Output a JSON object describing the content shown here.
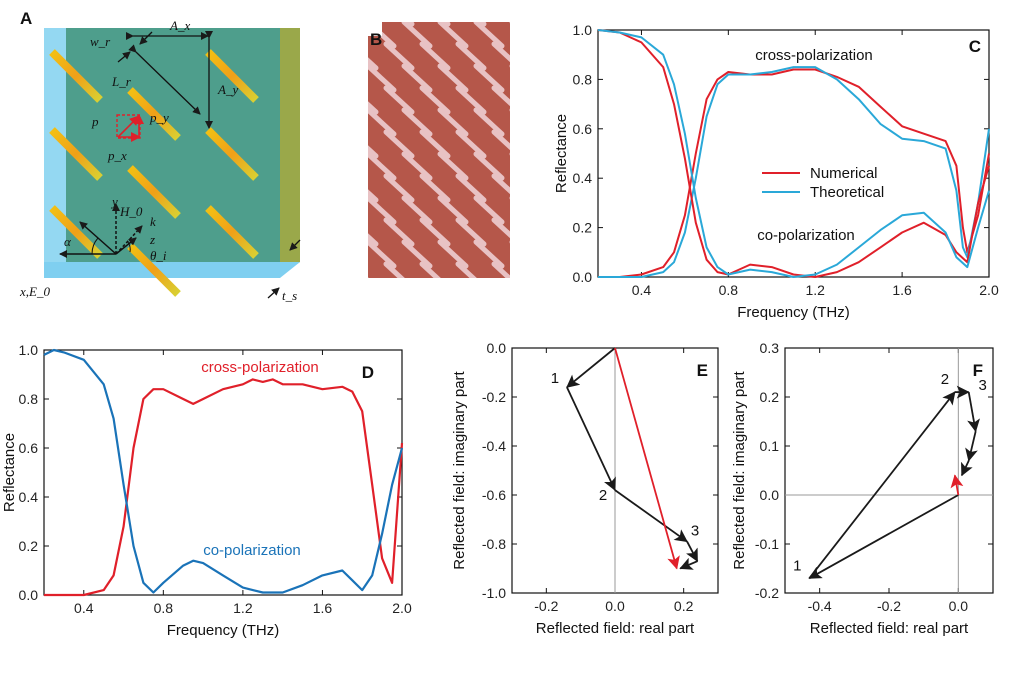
{
  "panels": {
    "a": {
      "letter": "A",
      "symbols": [
        "w_r",
        "A_x",
        "L_r",
        "A_y",
        "p",
        "p_y",
        "p_x",
        "H_0",
        "y",
        "k",
        "z",
        "α",
        "θ_i",
        "x,E_0",
        "t_s"
      ]
    },
    "b": {
      "letter": "B"
    }
  },
  "colors": {
    "red": "#e0202a",
    "blue": "#2aa8d8",
    "darkblue": "#1a73b8",
    "black": "#1a1a1a"
  },
  "chart_data": [
    {
      "id": "C",
      "type": "line",
      "letter": "C",
      "xlabel": "Frequency (THz)",
      "ylabel": "Reflectance",
      "xlim": [
        0.2,
        2.0
      ],
      "ylim": [
        0.0,
        1.0
      ],
      "xticks": [
        "0.4",
        "0.8",
        "1.2",
        "1.6",
        "2.0"
      ],
      "xtick_vals": [
        0.4,
        0.8,
        1.2,
        1.6,
        2.0
      ],
      "yticks": [
        "0.0",
        "0.2",
        "0.4",
        "0.6",
        "0.8",
        "1.0"
      ],
      "ytick_vals": [
        0,
        0.2,
        0.4,
        0.6,
        0.8,
        1.0
      ],
      "legend": [
        "Numerical",
        "Theoretical"
      ],
      "annotations": [
        "cross-polarization",
        "co-polarization"
      ],
      "series": [
        {
          "name": "Numerical cross-polarization",
          "color": "#e0202a",
          "x": [
            0.2,
            0.3,
            0.4,
            0.5,
            0.55,
            0.6,
            0.65,
            0.7,
            0.75,
            0.8,
            0.9,
            1.0,
            1.1,
            1.2,
            1.3,
            1.4,
            1.5,
            1.6,
            1.7,
            1.8,
            1.85,
            1.88,
            1.9,
            1.95,
            2.0
          ],
          "y": [
            0.0,
            0.0,
            0.01,
            0.04,
            0.1,
            0.25,
            0.5,
            0.72,
            0.8,
            0.83,
            0.82,
            0.82,
            0.84,
            0.84,
            0.81,
            0.77,
            0.69,
            0.61,
            0.58,
            0.55,
            0.45,
            0.2,
            0.1,
            0.25,
            0.5
          ]
        },
        {
          "name": "Theoretical cross-polarization",
          "color": "#2aa8d8",
          "x": [
            0.2,
            0.3,
            0.4,
            0.5,
            0.55,
            0.6,
            0.65,
            0.7,
            0.75,
            0.8,
            0.9,
            1.0,
            1.1,
            1.2,
            1.3,
            1.4,
            1.5,
            1.6,
            1.7,
            1.8,
            1.85,
            1.88,
            1.9,
            1.95,
            2.0
          ],
          "y": [
            0.0,
            0.0,
            0.0,
            0.02,
            0.06,
            0.18,
            0.4,
            0.65,
            0.78,
            0.82,
            0.82,
            0.83,
            0.85,
            0.85,
            0.8,
            0.72,
            0.62,
            0.56,
            0.55,
            0.52,
            0.35,
            0.12,
            0.08,
            0.3,
            0.6
          ]
        },
        {
          "name": "Numerical co-polarization",
          "color": "#e0202a",
          "x": [
            0.2,
            0.3,
            0.4,
            0.5,
            0.55,
            0.6,
            0.65,
            0.7,
            0.75,
            0.8,
            0.9,
            1.0,
            1.1,
            1.2,
            1.3,
            1.4,
            1.5,
            1.6,
            1.7,
            1.8,
            1.85,
            1.9,
            1.95,
            2.0
          ],
          "y": [
            1.0,
            0.99,
            0.95,
            0.85,
            0.7,
            0.48,
            0.22,
            0.07,
            0.02,
            0.01,
            0.05,
            0.04,
            0.01,
            0.0,
            0.02,
            0.06,
            0.12,
            0.18,
            0.22,
            0.17,
            0.1,
            0.06,
            0.3,
            0.45
          ]
        },
        {
          "name": "Theoretical co-polarization",
          "color": "#2aa8d8",
          "x": [
            0.2,
            0.3,
            0.4,
            0.5,
            0.55,
            0.6,
            0.65,
            0.7,
            0.75,
            0.8,
            0.9,
            1.0,
            1.1,
            1.2,
            1.3,
            1.4,
            1.5,
            1.6,
            1.7,
            1.8,
            1.85,
            1.9,
            1.95,
            2.0
          ],
          "y": [
            1.0,
            0.99,
            0.97,
            0.9,
            0.78,
            0.58,
            0.32,
            0.12,
            0.04,
            0.01,
            0.03,
            0.02,
            0.0,
            0.01,
            0.05,
            0.12,
            0.19,
            0.25,
            0.26,
            0.18,
            0.08,
            0.04,
            0.2,
            0.35
          ]
        }
      ]
    },
    {
      "id": "D",
      "type": "line",
      "letter": "D",
      "xlabel": "Frequency (THz)",
      "ylabel": "Reflectance",
      "xlim": [
        0.2,
        2.0
      ],
      "ylim": [
        0.0,
        1.0
      ],
      "xticks": [
        "0.4",
        "0.8",
        "1.2",
        "1.6",
        "2.0"
      ],
      "xtick_vals": [
        0.4,
        0.8,
        1.2,
        1.6,
        2.0
      ],
      "yticks": [
        "0.0",
        "0.2",
        "0.4",
        "0.6",
        "0.8",
        "1.0"
      ],
      "ytick_vals": [
        0,
        0.2,
        0.4,
        0.6,
        0.8,
        1.0
      ],
      "annotations": [
        "cross-polarization",
        "co-polarization"
      ],
      "series": [
        {
          "name": "cross-polarization",
          "color": "#e0202a",
          "x": [
            0.2,
            0.3,
            0.4,
            0.5,
            0.55,
            0.6,
            0.65,
            0.7,
            0.75,
            0.8,
            0.9,
            0.95,
            1.0,
            1.1,
            1.2,
            1.25,
            1.3,
            1.35,
            1.4,
            1.5,
            1.6,
            1.7,
            1.75,
            1.8,
            1.85,
            1.9,
            1.95,
            2.0
          ],
          "y": [
            0.0,
            0.0,
            0.0,
            0.02,
            0.08,
            0.28,
            0.6,
            0.8,
            0.84,
            0.84,
            0.8,
            0.78,
            0.8,
            0.84,
            0.86,
            0.88,
            0.87,
            0.88,
            0.86,
            0.86,
            0.84,
            0.85,
            0.83,
            0.75,
            0.45,
            0.15,
            0.05,
            0.62
          ]
        },
        {
          "name": "co-polarization",
          "color": "#1a73b8",
          "x": [
            0.2,
            0.25,
            0.3,
            0.4,
            0.5,
            0.55,
            0.6,
            0.65,
            0.7,
            0.75,
            0.8,
            0.9,
            0.95,
            1.0,
            1.1,
            1.2,
            1.3,
            1.4,
            1.5,
            1.6,
            1.7,
            1.75,
            1.8,
            1.85,
            1.9,
            1.95,
            2.0
          ],
          "y": [
            0.98,
            1.0,
            0.99,
            0.96,
            0.86,
            0.72,
            0.45,
            0.2,
            0.05,
            0.01,
            0.05,
            0.12,
            0.14,
            0.13,
            0.08,
            0.03,
            0.01,
            0.01,
            0.04,
            0.08,
            0.1,
            0.06,
            0.02,
            0.08,
            0.25,
            0.45,
            0.6
          ]
        }
      ]
    },
    {
      "id": "E",
      "type": "scatter",
      "letter": "E",
      "xlabel": "Reflected field: real part",
      "ylabel": "Reflected field: imaginary part",
      "xlim": [
        -0.3,
        0.3
      ],
      "ylim": [
        -1.0,
        0.0
      ],
      "xticks": [
        "-0.2",
        "0.0",
        "0.2"
      ],
      "xtick_vals": [
        -0.2,
        0.0,
        0.2
      ],
      "yticks": [
        "-1.0",
        "-0.8",
        "-0.6",
        "-0.4",
        "-0.2",
        "0.0"
      ],
      "ytick_vals": [
        -1.0,
        -0.8,
        -0.6,
        -0.4,
        -0.2,
        0.0
      ],
      "point_labels": [
        "1",
        "2",
        "3"
      ],
      "points": [
        [
          0.0,
          0.0
        ],
        [
          -0.14,
          -0.16
        ],
        [
          0.0,
          -0.58
        ],
        [
          0.21,
          -0.79
        ],
        [
          0.24,
          -0.87
        ],
        [
          0.19,
          -0.9
        ]
      ],
      "resultant": [
        0.18,
        -0.9
      ]
    },
    {
      "id": "F",
      "type": "scatter",
      "letter": "F",
      "xlabel": "Reflected field: real part",
      "ylabel": "Reflected field: imaginary part",
      "xlim": [
        -0.5,
        0.1
      ],
      "ylim": [
        -0.2,
        0.3
      ],
      "xticks": [
        "-0.4",
        "-0.2",
        "0.0"
      ],
      "xtick_vals": [
        -0.4,
        -0.2,
        0.0
      ],
      "yticks": [
        "-0.2",
        "-0.1",
        "0.0",
        "0.1",
        "0.2",
        "0.3"
      ],
      "ytick_vals": [
        -0.2,
        -0.1,
        0.0,
        0.1,
        0.2,
        0.3
      ],
      "point_labels": [
        "1",
        "2",
        "3"
      ],
      "points": [
        [
          0.0,
          0.0
        ],
        [
          -0.43,
          -0.17
        ],
        [
          -0.01,
          0.21
        ],
        [
          0.03,
          0.21
        ],
        [
          0.05,
          0.13
        ],
        [
          0.03,
          0.07
        ],
        [
          0.01,
          0.04
        ]
      ],
      "resultant": [
        -0.01,
        0.04
      ]
    }
  ]
}
